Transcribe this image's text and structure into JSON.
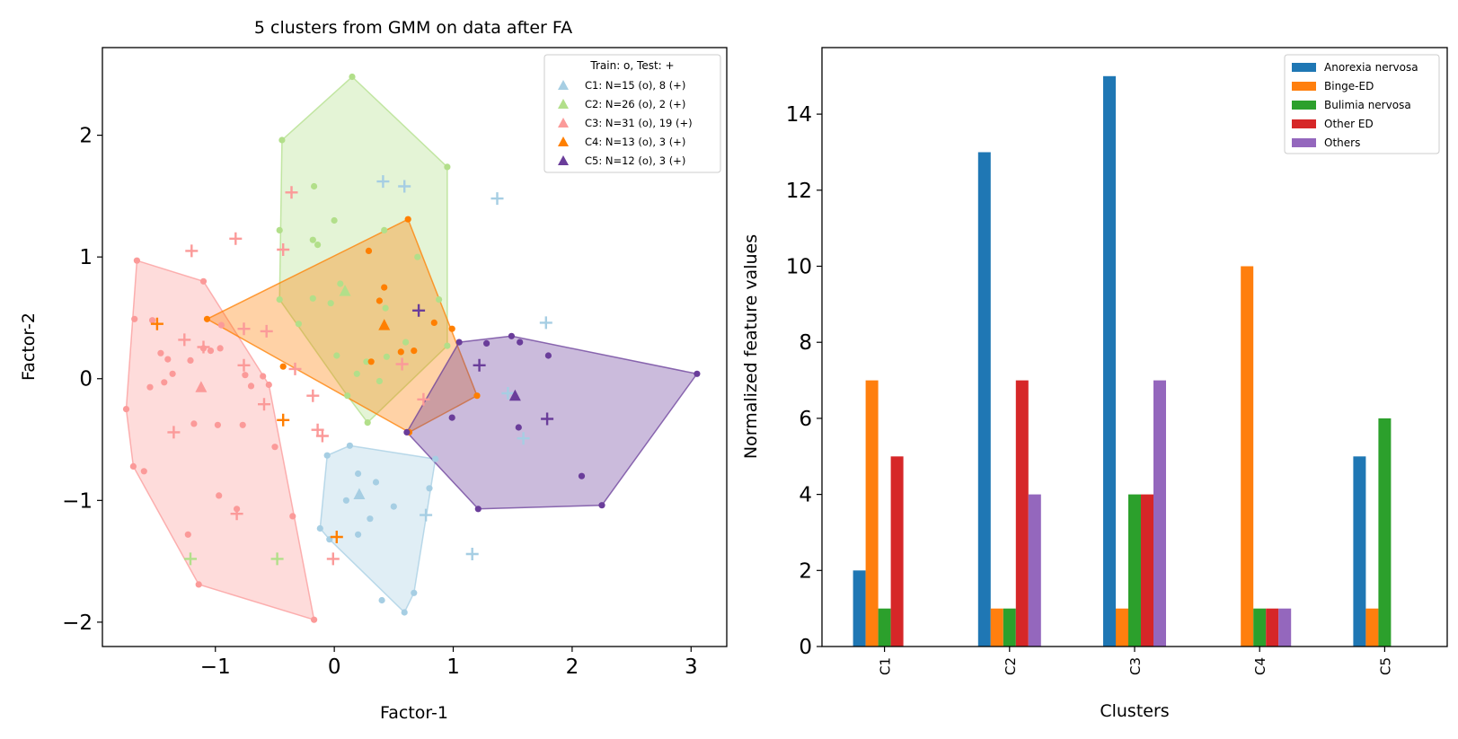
{
  "chart_data": [
    {
      "type": "scatter",
      "title": "5 clusters from GMM on data after FA",
      "xlabel": "Factor-1",
      "ylabel": "Factor-2",
      "xlim": [
        -1.95,
        3.3
      ],
      "ylim": [
        -2.2,
        2.72
      ],
      "xticks": [
        -1,
        0,
        1,
        2,
        3
      ],
      "yticks": [
        -2,
        -1,
        0,
        1,
        2
      ],
      "legend_title": "Train: o, Test: +",
      "legend_position": "upper right",
      "series": [
        {
          "name": "C1: N=15 (o), 8 (+)",
          "color": "#a6cee3",
          "centroid": [
            0.21,
            -0.95
          ],
          "hull": [
            [
              -0.12,
              -1.23
            ],
            [
              -0.04,
              -1.32
            ],
            [
              0.59,
              -1.92
            ],
            [
              0.67,
              -1.76
            ],
            [
              0.85,
              -0.66
            ],
            [
              0.13,
              -0.55
            ],
            [
              -0.06,
              -0.63
            ]
          ],
          "train": [
            [
              -0.06,
              -0.63
            ],
            [
              0.13,
              -0.55
            ],
            [
              0.85,
              -0.66
            ],
            [
              0.8,
              -0.9
            ],
            [
              0.67,
              -1.76
            ],
            [
              0.59,
              -1.92
            ],
            [
              0.4,
              -1.82
            ],
            [
              0.2,
              -1.28
            ],
            [
              -0.04,
              -1.32
            ],
            [
              -0.12,
              -1.23
            ],
            [
              0.2,
              -0.78
            ],
            [
              0.35,
              -0.85
            ],
            [
              0.5,
              -1.05
            ],
            [
              0.3,
              -1.15
            ],
            [
              0.1,
              -1.0
            ]
          ],
          "test": [
            [
              0.41,
              1.62
            ],
            [
              0.59,
              1.58
            ],
            [
              1.37,
              1.48
            ],
            [
              1.78,
              0.46
            ],
            [
              1.46,
              -0.12
            ],
            [
              1.59,
              -0.49
            ],
            [
              0.77,
              -1.12
            ],
            [
              1.16,
              -1.44
            ]
          ]
        },
        {
          "name": "C2: N=26 (o), 2 (+)",
          "color": "#b2df8a",
          "centroid": [
            0.09,
            0.72
          ],
          "hull": [
            [
              -0.46,
              0.65
            ],
            [
              -0.44,
              1.96
            ],
            [
              0.15,
              2.48
            ],
            [
              0.95,
              1.74
            ],
            [
              0.95,
              0.27
            ],
            [
              0.28,
              -0.36
            ],
            [
              0.11,
              -0.14
            ]
          ],
          "train": [
            [
              0.15,
              2.48
            ],
            [
              -0.44,
              1.96
            ],
            [
              0.95,
              1.74
            ],
            [
              -0.17,
              1.58
            ],
            [
              0.0,
              1.3
            ],
            [
              0.42,
              1.22
            ],
            [
              -0.46,
              1.22
            ],
            [
              -0.18,
              1.14
            ],
            [
              -0.14,
              1.1
            ],
            [
              -0.46,
              0.65
            ],
            [
              -0.18,
              0.66
            ],
            [
              -0.03,
              0.62
            ],
            [
              0.05,
              0.78
            ],
            [
              0.43,
              0.58
            ],
            [
              0.88,
              0.65
            ],
            [
              0.95,
              0.27
            ],
            [
              0.02,
              0.19
            ],
            [
              0.27,
              0.14
            ],
            [
              0.44,
              0.18
            ],
            [
              0.19,
              0.04
            ],
            [
              0.38,
              -0.02
            ],
            [
              0.11,
              -0.14
            ],
            [
              0.28,
              -0.36
            ],
            [
              0.6,
              0.3
            ],
            [
              -0.3,
              0.45
            ],
            [
              0.7,
              1.0
            ]
          ],
          "test": [
            [
              -1.21,
              -1.48
            ],
            [
              -0.48,
              -1.48
            ]
          ]
        },
        {
          "name": "C3: N=31 (o), 19 (+)",
          "color": "#fb9a99",
          "centroid": [
            -1.12,
            -0.07
          ],
          "hull": [
            [
              -1.66,
              0.97
            ],
            [
              -1.1,
              0.8
            ],
            [
              -0.55,
              -0.05
            ],
            [
              -0.17,
              -1.98
            ],
            [
              -1.14,
              -1.69
            ],
            [
              -1.69,
              -0.72
            ],
            [
              -1.75,
              -0.25
            ]
          ],
          "train": [
            [
              -1.66,
              0.97
            ],
            [
              -1.1,
              0.8
            ],
            [
              -1.68,
              0.49
            ],
            [
              -1.53,
              0.48
            ],
            [
              -1.55,
              -0.07
            ],
            [
              -1.75,
              -0.25
            ],
            [
              -1.46,
              0.21
            ],
            [
              -1.4,
              0.16
            ],
            [
              -1.43,
              -0.03
            ],
            [
              -1.36,
              0.04
            ],
            [
              -1.21,
              0.15
            ],
            [
              -1.04,
              0.23
            ],
            [
              -1.1,
              0.25
            ],
            [
              -0.95,
              0.44
            ],
            [
              -0.96,
              0.25
            ],
            [
              -0.75,
              0.03
            ],
            [
              -0.7,
              -0.06
            ],
            [
              -0.6,
              0.02
            ],
            [
              -0.55,
              -0.05
            ],
            [
              -0.5,
              -0.56
            ],
            [
              -1.18,
              -0.37
            ],
            [
              -0.98,
              -0.38
            ],
            [
              -0.77,
              -0.38
            ],
            [
              -1.69,
              -0.72
            ],
            [
              -1.6,
              -0.76
            ],
            [
              -0.97,
              -0.96
            ],
            [
              -0.82,
              -1.07
            ],
            [
              -0.35,
              -1.13
            ],
            [
              -1.23,
              -1.28
            ],
            [
              -1.14,
              -1.69
            ],
            [
              -0.17,
              -1.98
            ]
          ],
          "test": [
            [
              -1.2,
              1.05
            ],
            [
              -0.83,
              1.15
            ],
            [
              -0.43,
              1.06
            ],
            [
              -0.36,
              1.53
            ],
            [
              -0.76,
              0.41
            ],
            [
              -0.57,
              0.39
            ],
            [
              -1.26,
              0.32
            ],
            [
              -1.1,
              0.26
            ],
            [
              -0.76,
              0.11
            ],
            [
              -0.33,
              0.08
            ],
            [
              0.57,
              0.12
            ],
            [
              -0.18,
              -0.14
            ],
            [
              -0.59,
              -0.21
            ],
            [
              -1.35,
              -0.44
            ],
            [
              -0.14,
              -0.42
            ],
            [
              -0.1,
              -0.47
            ],
            [
              -0.82,
              -1.11
            ],
            [
              -0.01,
              -1.48
            ],
            [
              0.75,
              -0.17
            ]
          ]
        },
        {
          "name": "C4: N=13 (o), 3 (+)",
          "color": "#ff7f00",
          "centroid": [
            0.42,
            0.44
          ],
          "hull": [
            [
              -1.07,
              0.49
            ],
            [
              0.62,
              1.31
            ],
            [
              1.2,
              -0.14
            ],
            [
              0.63,
              -0.44
            ]
          ],
          "train": [
            [
              0.62,
              1.31
            ],
            [
              0.29,
              1.05
            ],
            [
              0.42,
              0.75
            ],
            [
              0.38,
              0.64
            ],
            [
              0.84,
              0.46
            ],
            [
              0.99,
              0.41
            ],
            [
              0.56,
              0.22
            ],
            [
              0.67,
              0.23
            ],
            [
              0.31,
              0.14
            ],
            [
              -0.43,
              0.1
            ],
            [
              -1.07,
              0.49
            ],
            [
              1.2,
              -0.14
            ],
            [
              0.63,
              -0.44
            ]
          ],
          "test": [
            [
              -1.49,
              0.45
            ],
            [
              -0.43,
              -0.34
            ],
            [
              0.02,
              -1.3
            ]
          ]
        },
        {
          "name": "C5: N=12 (o), 3 (+)",
          "color": "#6a3d9a",
          "centroid": [
            1.52,
            -0.14
          ],
          "hull": [
            [
              0.61,
              -0.44
            ],
            [
              1.21,
              -1.07
            ],
            [
              2.25,
              -1.04
            ],
            [
              3.05,
              0.04
            ],
            [
              1.49,
              0.35
            ],
            [
              1.05,
              0.3
            ]
          ],
          "train": [
            [
              1.49,
              0.35
            ],
            [
              1.28,
              0.29
            ],
            [
              1.05,
              0.3
            ],
            [
              1.56,
              0.3
            ],
            [
              1.8,
              0.19
            ],
            [
              3.05,
              0.04
            ],
            [
              0.99,
              -0.32
            ],
            [
              1.55,
              -0.4
            ],
            [
              2.08,
              -0.8
            ],
            [
              2.25,
              -1.04
            ],
            [
              1.21,
              -1.07
            ],
            [
              0.61,
              -0.44
            ]
          ],
          "test": [
            [
              0.71,
              0.56
            ],
            [
              1.22,
              0.11
            ],
            [
              1.79,
              -0.33
            ]
          ]
        }
      ]
    },
    {
      "type": "bar",
      "xlabel": "Clusters",
      "ylabel": "Normalized feature values",
      "categories": [
        "C1",
        "C2",
        "C3",
        "C4",
        "C5"
      ],
      "ylim": [
        0,
        15.75
      ],
      "yticks": [
        0,
        2,
        4,
        6,
        8,
        10,
        12,
        14
      ],
      "legend_position": "upper right",
      "series": [
        {
          "name": "Anorexia nervosa",
          "color": "#1f77b4",
          "values": [
            2,
            13,
            15,
            0,
            5
          ]
        },
        {
          "name": "Binge-ED",
          "color": "#ff7f0e",
          "values": [
            7,
            1,
            1,
            10,
            1
          ]
        },
        {
          "name": "Bulimia nervosa",
          "color": "#2ca02c",
          "values": [
            1,
            1,
            4,
            1,
            6
          ]
        },
        {
          "name": "Other ED",
          "color": "#d62728",
          "values": [
            5,
            7,
            4,
            1,
            0
          ]
        },
        {
          "name": "Others",
          "color": "#9467bd",
          "values": [
            0,
            4,
            7,
            1,
            0
          ]
        }
      ]
    }
  ]
}
